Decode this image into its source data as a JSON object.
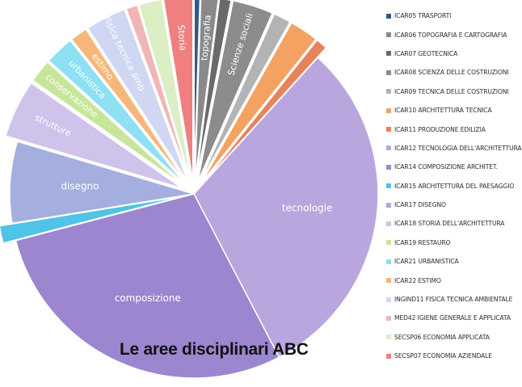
{
  "chart_data": {
    "type": "pie",
    "title": "Le aree disciplinari ABC",
    "legend_position": "right",
    "slices": [
      {
        "legend": "ICAR05 TRASPORTI",
        "value": 0.5,
        "color": "#2f5b8a",
        "label": ""
      },
      {
        "legend": "ICAR06 TOPOGRAFIA E CARTOGRAFIA",
        "value": 1.5,
        "color": "#8a8a8a",
        "label": "topografia"
      },
      {
        "legend": "ICAR07 GEOTECNICA",
        "value": 1.0,
        "color": "#6a6a6a",
        "label": ""
      },
      {
        "legend": "ICAR08 SCIENZA DELLE COSTRUZIONI",
        "value": 3.5,
        "color": "#8c8c8c",
        "label": "Scienze sociali"
      },
      {
        "legend": "ICAR09 TECNICA DELLE COSTRUZIONI",
        "value": 1.5,
        "color": "#b3b3b3",
        "label": ""
      },
      {
        "legend": "ICAR10 ARCHITETTURA TECNICA",
        "value": 2.5,
        "color": "#f4a261",
        "label": ""
      },
      {
        "legend": "ICAR11 PRODUZIONE EDILIZIA",
        "value": 1.0,
        "color": "#e8825a",
        "label": ""
      },
      {
        "legend": "ICAR12 TECNOLOGIA DELL'ARCHITETTURA",
        "value": 30.0,
        "color": "#b9a6de",
        "label": "tecnologie"
      },
      {
        "legend": "ICAR14 COMPOSIZIONE ARCHITET.",
        "value": 28.0,
        "color": "#9b86cf",
        "label": "composizione"
      },
      {
        "legend": "ICAR15 ARCHITETTURA DEL PAESAGGIO",
        "value": 1.5,
        "color": "#4fc3e8",
        "label": ""
      },
      {
        "legend": "ICAR17 DISEGNO",
        "value": 7.0,
        "color": "#a4aedf",
        "label": "disegno"
      },
      {
        "legend": "ICAR18 STORIA DELL'ARCHITETTURA",
        "value": 5.0,
        "color": "#cfc3ec",
        "label": "strutture"
      },
      {
        "legend": "ICAR19 RESTAURO",
        "value": 2.0,
        "color": "#c7e69a",
        "label": "conservazione"
      },
      {
        "legend": "ICAR21 URBANISTICA",
        "value": 2.5,
        "color": "#8ee0f2",
        "label": "urbanistica"
      },
      {
        "legend": "ICAR22 ESTIMO",
        "value": 1.5,
        "color": "#f7b77a",
        "label": "estimo"
      },
      {
        "legend": "INGIND11 FISICA TECNICA AMBIENTALE",
        "value": 3.5,
        "color": "#d0d7f3",
        "label": "Fisica tecnica amb"
      },
      {
        "legend": "MED42 IGIENE GENERALE E APPLICATA",
        "value": 1.0,
        "color": "#f2b5b5",
        "label": ""
      },
      {
        "legend": "SECSP06 ECONOMIA APPLICATA",
        "value": 2.0,
        "color": "#dbeec4",
        "label": ""
      },
      {
        "legend": "SECSP07 ECONOMIA AZIENDALE",
        "value": 2.5,
        "color": "#f07f7f",
        "label": "Storia"
      }
    ]
  }
}
